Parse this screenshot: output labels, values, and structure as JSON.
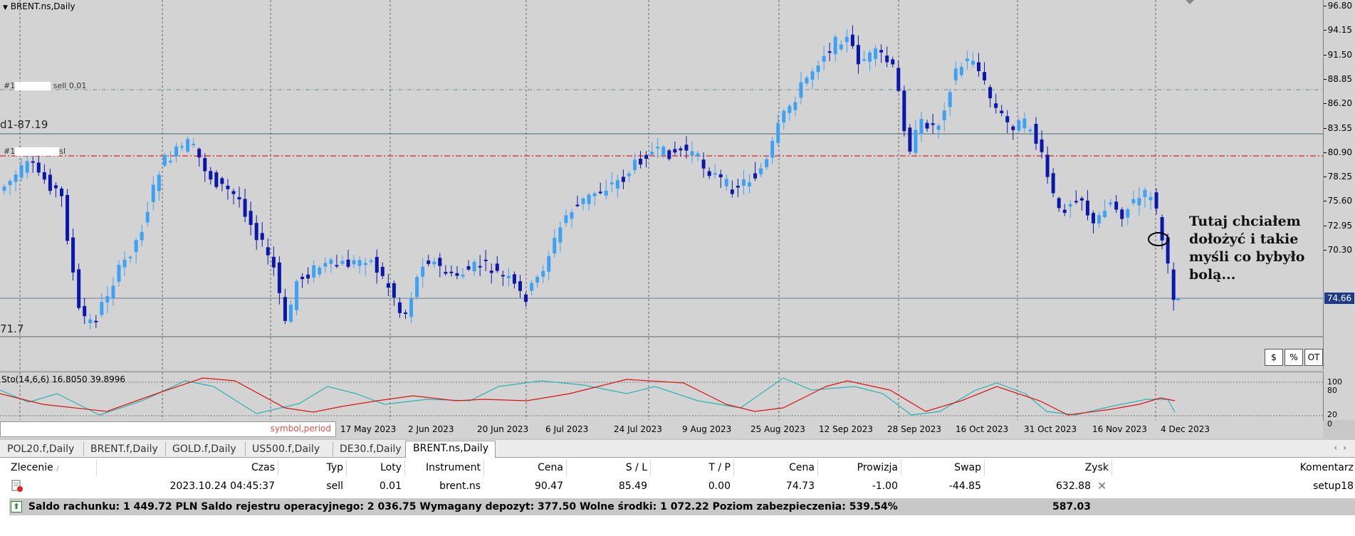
{
  "chart": {
    "title": "BRENT.ns,Daily",
    "symbol_period_placeholder": "symbol,period",
    "current_price": "74.66",
    "price_ticks": [
      "96.80",
      "94.15",
      "91.50",
      "88.85",
      "86.20",
      "83.55",
      "80.90",
      "78.25",
      "75.60",
      "72.95",
      "70.30"
    ],
    "level_labels": [
      "d1-87.19",
      "71.7"
    ],
    "trade_labels": [
      "#1",
      "sell 0.01",
      "#1",
      "sl"
    ],
    "time_labels": [
      "17 May 2023",
      "2 Jun 2023",
      "20 Jun 2023",
      "6 Jul 2023",
      "24 Jul 2023",
      "9 Aug 2023",
      "25 Aug 2023",
      "12 Sep 2023",
      "28 Sep 2023",
      "16 Oct 2023",
      "31 Oct 2023",
      "16 Nov 2023",
      "4 Dec 2023"
    ],
    "annotation": "Tutaj chciałem dołożyć i takie myśli co bybyło bolą...",
    "corner_buttons": [
      "$",
      "%",
      "OT"
    ],
    "colors": {
      "bull": "#3ea1f3",
      "bear": "#0b17a8",
      "stoch_main": "#2ab3b3",
      "stoch_signal": "#e01010",
      "sl_line": "#e02020"
    }
  },
  "stochastic": {
    "title": "Sto(14,6,6) 16.8050 39.8996",
    "levels": [
      "100",
      "80",
      "20",
      "0"
    ]
  },
  "tabs": [
    {
      "label": "POL20.f,Daily",
      "active": false
    },
    {
      "label": "BRENT.f,Daily",
      "active": false
    },
    {
      "label": "GOLD.f,Daily",
      "active": false
    },
    {
      "label": "US500.f,Daily",
      "active": false
    },
    {
      "label": "DE30.f,Daily",
      "active": false
    },
    {
      "label": "BRENT.ns,Daily",
      "active": true
    }
  ],
  "orders": {
    "headers": [
      "Zlecenie",
      "/",
      "Czas",
      "Typ",
      "Loty",
      "Instrument",
      "Cena",
      "S / L",
      "T / P",
      "Cena",
      "Prowizja",
      "Swap",
      "Zysk",
      "Komentarz"
    ],
    "row": {
      "time": "2023.10.24 04:45:37",
      "type": "sell",
      "lots": "0.01",
      "instrument": "brent.ns",
      "open_price": "90.47",
      "sl": "85.49",
      "tp": "0.00",
      "price": "74.73",
      "commission": "-1.00",
      "swap": "-44.85",
      "profit": "632.88",
      "comment": "setup18"
    },
    "balance": "Saldo rachunku: 1 449.72 PLN  Saldo rejestru operacyjnego: 2 036.75  Wymagany depozyt: 377.50  Wolne środki: 1 072.22  Poziom zabezpieczenia: 539.54%",
    "total_profit": "587.03"
  }
}
